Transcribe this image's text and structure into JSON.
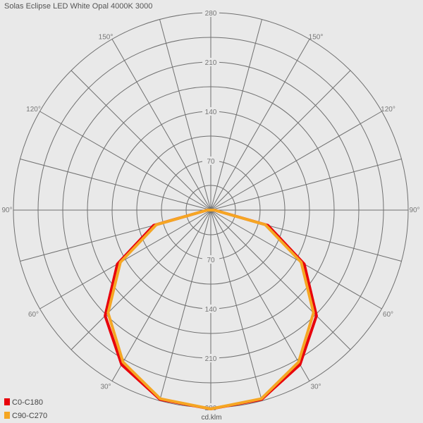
{
  "title": "Solas Eclipse LED White Opal 4000K 3000",
  "chart_data": {
    "type": "polar",
    "max_value": 280,
    "radial_ticks": [
      70,
      140,
      210,
      280
    ],
    "radial_tick_labels": [
      "70",
      "140",
      "210",
      "280"
    ],
    "angle_labels": [
      "150°",
      "150°",
      "120°",
      "120°",
      "90°",
      "90°",
      "60°",
      "60°",
      "30°",
      "30°"
    ],
    "unit_label": "cd.klm",
    "angular_step_deg": 15,
    "series": [
      {
        "name": "C0-C180",
        "color": "#e8000b",
        "angles_deg": [
          0,
          15,
          30,
          45,
          60,
          75,
          90
        ],
        "values": [
          282,
          278,
          253,
          212,
          153,
          84,
          5
        ]
      },
      {
        "name": "C90-C270",
        "color": "#f5a623",
        "angles_deg": [
          0,
          15,
          30,
          45,
          60,
          75,
          90
        ],
        "values": [
          282,
          277,
          249,
          206,
          148,
          80,
          5
        ]
      }
    ]
  },
  "legend": [
    {
      "label": "C0-C180",
      "color": "#e8000b"
    },
    {
      "label": "C90-C270",
      "color": "#f5a623"
    }
  ]
}
